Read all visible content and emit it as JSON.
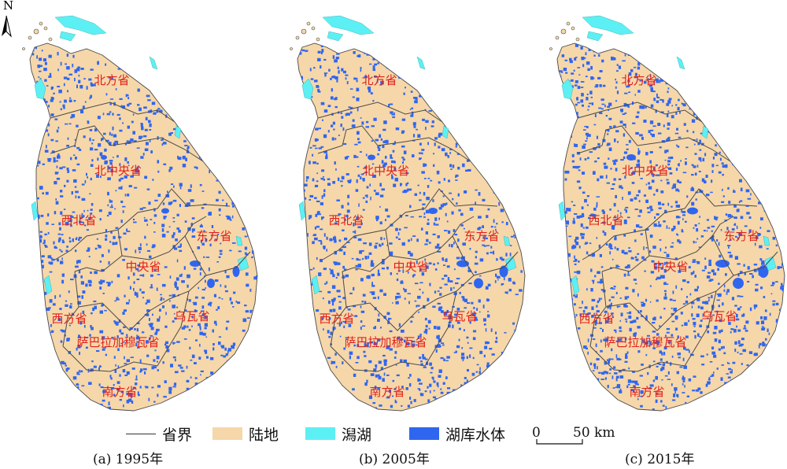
{
  "north_arrow": {
    "letter": "N"
  },
  "maps": [
    {
      "caption": "(a) 1995年",
      "lagoon_scale": 1.0,
      "water_density": 0.3
    },
    {
      "caption": "(b) 2005年",
      "lagoon_scale": 1.0,
      "water_density": 0.3
    },
    {
      "caption": "(c) 2015年",
      "lagoon_scale": 1.0,
      "water_density": 0.36
    }
  ],
  "provinces": [
    "北方省",
    "北中央省",
    "西北省",
    "东方省",
    "中央省",
    "西方省",
    "乌瓦省",
    "萨巴拉加穆瓦省",
    "南方省"
  ],
  "legend": {
    "boundary": "省界",
    "land": "陆地",
    "lagoon": "潟湖",
    "reservoir": "湖库水体"
  },
  "scale_bar": {
    "zero": "0",
    "value": "50 km"
  },
  "colors": {
    "land": "#f6d7a9",
    "lagoon": "#5cf0f4",
    "reservoir": "#2f66f0",
    "boundary": "#4a4a4a",
    "label": "#e0201b"
  }
}
